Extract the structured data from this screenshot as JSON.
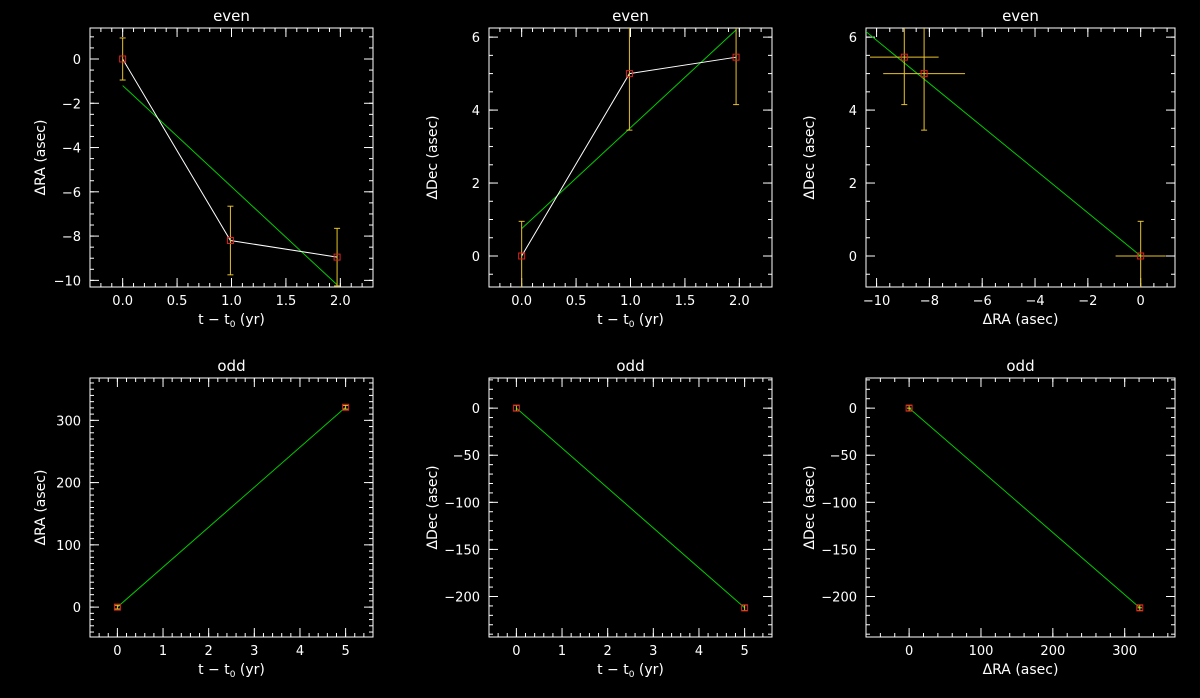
{
  "chart_data": [
    {
      "type": "line",
      "title": "even",
      "xlabel": "t − t",
      "xlabel_sub": "0",
      "xlabel_unit": " (yr)",
      "ylabel": "ΔRA (asec)",
      "xlim": [
        -0.3,
        2.3
      ],
      "ylim": [
        -10.3,
        1.4
      ],
      "xticks": [
        0.0,
        0.5,
        1.0,
        1.5,
        2.0
      ],
      "xtick_labels": [
        "0.0",
        "0.5",
        "1.0",
        "1.5",
        "2.0"
      ],
      "yticks": [
        -10,
        -8,
        -6,
        -4,
        -2,
        0
      ],
      "ytick_labels": [
        "−10",
        "−8",
        "−6",
        "−4",
        "−2",
        "0"
      ],
      "xminor": 0.1,
      "yminor": 0.5,
      "points": {
        "x": [
          0.0,
          0.99,
          1.97
        ],
        "y": [
          0.0,
          -8.2,
          -8.95
        ],
        "yerr": [
          0.95,
          1.55,
          1.3
        ]
      },
      "fit": {
        "x": [
          0.0,
          1.97
        ],
        "y": [
          -1.2,
          -10.2
        ]
      }
    },
    {
      "type": "line",
      "title": "even",
      "xlabel": "t − t",
      "xlabel_sub": "0",
      "xlabel_unit": " (yr)",
      "ylabel": "ΔDec (asec)",
      "xlim": [
        -0.3,
        2.3
      ],
      "ylim": [
        -0.85,
        6.25
      ],
      "xticks": [
        0.0,
        0.5,
        1.0,
        1.5,
        2.0
      ],
      "xtick_labels": [
        "0.0",
        "0.5",
        "1.0",
        "1.5",
        "2.0"
      ],
      "yticks": [
        0,
        2,
        4,
        6
      ],
      "ytick_labels": [
        "0",
        "2",
        "4",
        "6"
      ],
      "xminor": 0.1,
      "yminor": 0.5,
      "points": {
        "x": [
          0.0,
          0.99,
          1.97
        ],
        "y": [
          0.0,
          5.0,
          5.45
        ],
        "yerr": [
          0.95,
          1.55,
          1.3
        ]
      },
      "fit": {
        "x": [
          0.0,
          1.97
        ],
        "y": [
          0.75,
          6.2
        ]
      }
    },
    {
      "type": "scatter",
      "title": "even",
      "xlabel": "ΔRA (asec)",
      "ylabel": "ΔDec (asec)",
      "xlim": [
        -10.4,
        1.3
      ],
      "ylim": [
        -0.85,
        6.25
      ],
      "xticks": [
        -10,
        -8,
        -6,
        -4,
        -2,
        0
      ],
      "xtick_labels": [
        "−10",
        "−8",
        "−6",
        "−4",
        "−2",
        "0"
      ],
      "yticks": [
        0,
        2,
        4,
        6
      ],
      "ytick_labels": [
        "0",
        "2",
        "4",
        "6"
      ],
      "xminor": 0.5,
      "yminor": 0.5,
      "points": {
        "x": [
          0.0,
          -8.2,
          -8.95
        ],
        "y": [
          0.0,
          5.0,
          5.45
        ],
        "xerr": [
          0.95,
          1.55,
          1.3
        ],
        "yerr": [
          0.95,
          1.55,
          1.3
        ]
      },
      "fit": {
        "x": [
          -10.4,
          0.0
        ],
        "y": [
          6.15,
          0.0
        ]
      }
    },
    {
      "type": "line",
      "title": "odd",
      "xlabel": "t − t",
      "xlabel_sub": "0",
      "xlabel_unit": " (yr)",
      "ylabel": "ΔRA (asec)",
      "xlim": [
        -0.6,
        5.6
      ],
      "ylim": [
        -48,
        368
      ],
      "xticks": [
        0,
        1,
        2,
        3,
        4,
        5
      ],
      "xtick_labels": [
        "0",
        "1",
        "2",
        "3",
        "4",
        "5"
      ],
      "yticks": [
        0,
        100,
        200,
        300
      ],
      "ytick_labels": [
        "0",
        "100",
        "200",
        "300"
      ],
      "xminor": 0.2,
      "yminor": 10,
      "points": {
        "x": [
          0.0,
          5.0
        ],
        "y": [
          0.0,
          321
        ],
        "yerr": [
          3,
          3
        ]
      },
      "fit": {
        "x": [
          0.0,
          5.0
        ],
        "y": [
          0.0,
          321
        ]
      }
    },
    {
      "type": "line",
      "title": "odd",
      "xlabel": "t − t",
      "xlabel_sub": "0",
      "xlabel_unit": " (yr)",
      "ylabel": "ΔDec (asec)",
      "xlim": [
        -0.6,
        5.6
      ],
      "ylim": [
        -243,
        32
      ],
      "xticks": [
        0,
        1,
        2,
        3,
        4,
        5
      ],
      "xtick_labels": [
        "0",
        "1",
        "2",
        "3",
        "4",
        "5"
      ],
      "yticks": [
        -200,
        -150,
        -100,
        -50,
        0
      ],
      "ytick_labels": [
        "−200",
        "−150",
        "−100",
        "−50",
        "0"
      ],
      "xminor": 0.2,
      "yminor": 10,
      "points": {
        "x": [
          0.0,
          5.0
        ],
        "y": [
          0.0,
          -212
        ],
        "yerr": [
          3,
          3
        ]
      },
      "fit": {
        "x": [
          0.0,
          5.0
        ],
        "y": [
          0.0,
          -212
        ]
      }
    },
    {
      "type": "scatter",
      "title": "odd",
      "xlabel": "ΔRA (asec)",
      "ylabel": "ΔDec (asec)",
      "xlim": [
        -60,
        370
      ],
      "ylim": [
        -243,
        32
      ],
      "xticks": [
        0,
        100,
        200,
        300
      ],
      "xtick_labels": [
        "0",
        "100",
        "200",
        "300"
      ],
      "yticks": [
        -200,
        -150,
        -100,
        -50,
        0
      ],
      "ytick_labels": [
        "−200",
        "−150",
        "−100",
        "−50",
        "0"
      ],
      "xminor": 20,
      "yminor": 10,
      "points": {
        "x": [
          0.0,
          321
        ],
        "y": [
          0.0,
          -212
        ],
        "xerr": [
          3,
          3
        ],
        "yerr": [
          3,
          3
        ]
      },
      "fit": {
        "x": [
          0.0,
          321
        ],
        "y": [
          0.0,
          -212
        ]
      }
    }
  ],
  "colors": {
    "background": "#000000",
    "axes": "#ffffff",
    "data_line": "#ffffff",
    "fit_line": "#00cc00",
    "error_bars": "#e6c229",
    "markers": "#dd2222"
  }
}
